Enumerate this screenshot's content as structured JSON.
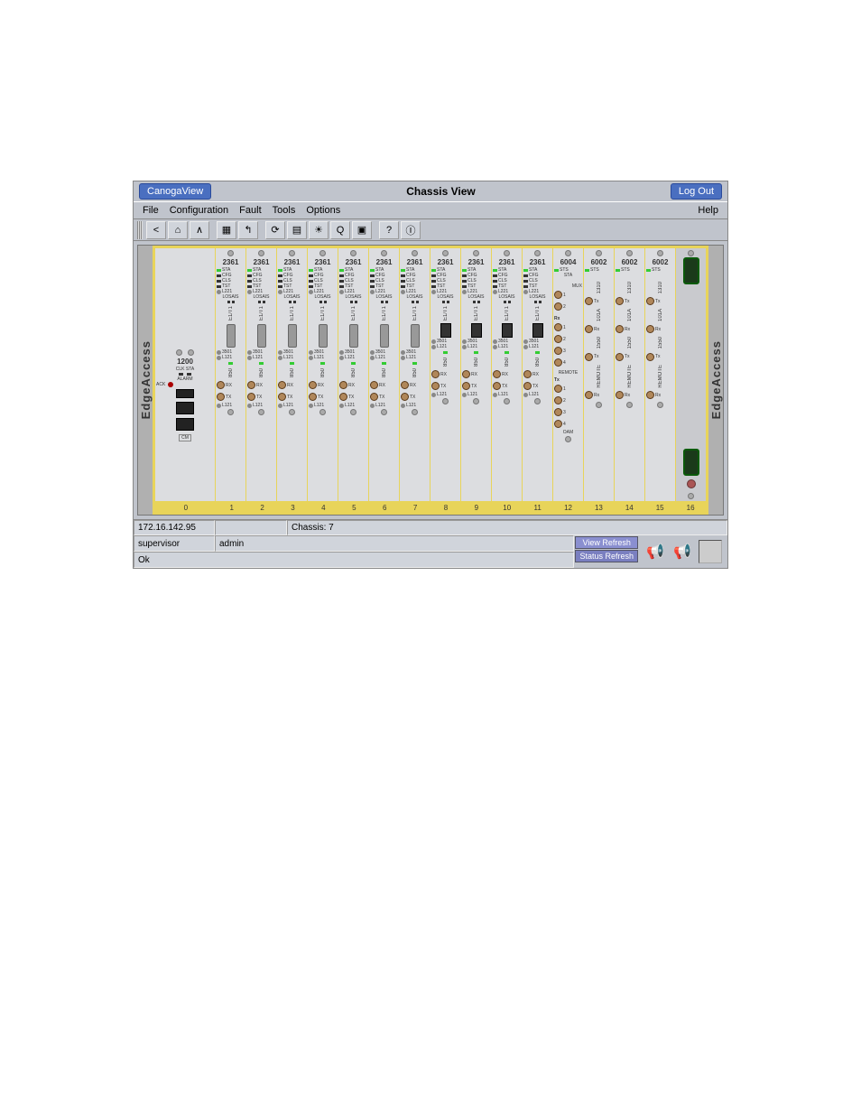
{
  "ribbon": {
    "home_btn": "CanogaView",
    "title": "Chassis View",
    "logout_btn": "Log Out"
  },
  "menu": {
    "file": "File",
    "configuration": "Configuration",
    "fault": "Fault",
    "tools": "Tools",
    "options": "Options",
    "help": "Help"
  },
  "toolbar_icons": [
    "<",
    "⌂",
    "∧",
    "▦",
    "↰",
    "⟳",
    "▤",
    "☀",
    "Q",
    "▣",
    "?",
    "Ⓘ"
  ],
  "chassis": {
    "brand": "EdgeAccess",
    "slot_numbers": [
      "0",
      "1",
      "2",
      "3",
      "4",
      "5",
      "6",
      "7",
      "8",
      "9",
      "10",
      "11",
      "12",
      "13",
      "14",
      "15",
      "16"
    ],
    "mgmt_card": {
      "model": "1200",
      "clk_sta": "CLK STA",
      "alarm": "ALARM",
      "ack": "ACK",
      "cm": "CM"
    },
    "card_2361": {
      "model": "2361",
      "leds": [
        "STA",
        "CFG",
        "CLS",
        "TST"
      ],
      "l221": "L221",
      "losais": "LOSAIS",
      "port_v": "E1/T1",
      "p3501": "3501",
      "p_l121_a": "L121",
      "sfp_top": "850",
      "rx": "RX",
      "tx": "TX",
      "p_l121_b": "L121"
    },
    "card_6004": {
      "model": "6004",
      "sts": "STS",
      "sta": "STA",
      "mux": "MUX",
      "rx": "Rx",
      "tx": "Tx",
      "remote": "REMOTE",
      "oam": "OAM"
    },
    "card_6002": {
      "model": "6002",
      "sts": "STS",
      "w1550": "1550",
      "w1310": "1310",
      "tx": "Tx",
      "rx": "Rx",
      "remote": "REMOTE",
      "oam": "101A"
    }
  },
  "status": {
    "ip": "172.16.142.95",
    "chassis_label": "Chassis: 7",
    "user_role": "supervisor",
    "user_name": "admin",
    "ok": "Ok",
    "view_refresh": "View Refresh",
    "status_refresh": "Status Refresh"
  },
  "colors": {
    "chassis_frame": "#e8d45a",
    "led_green": "#33cc33",
    "btn_blue": "#4a6fc0"
  }
}
